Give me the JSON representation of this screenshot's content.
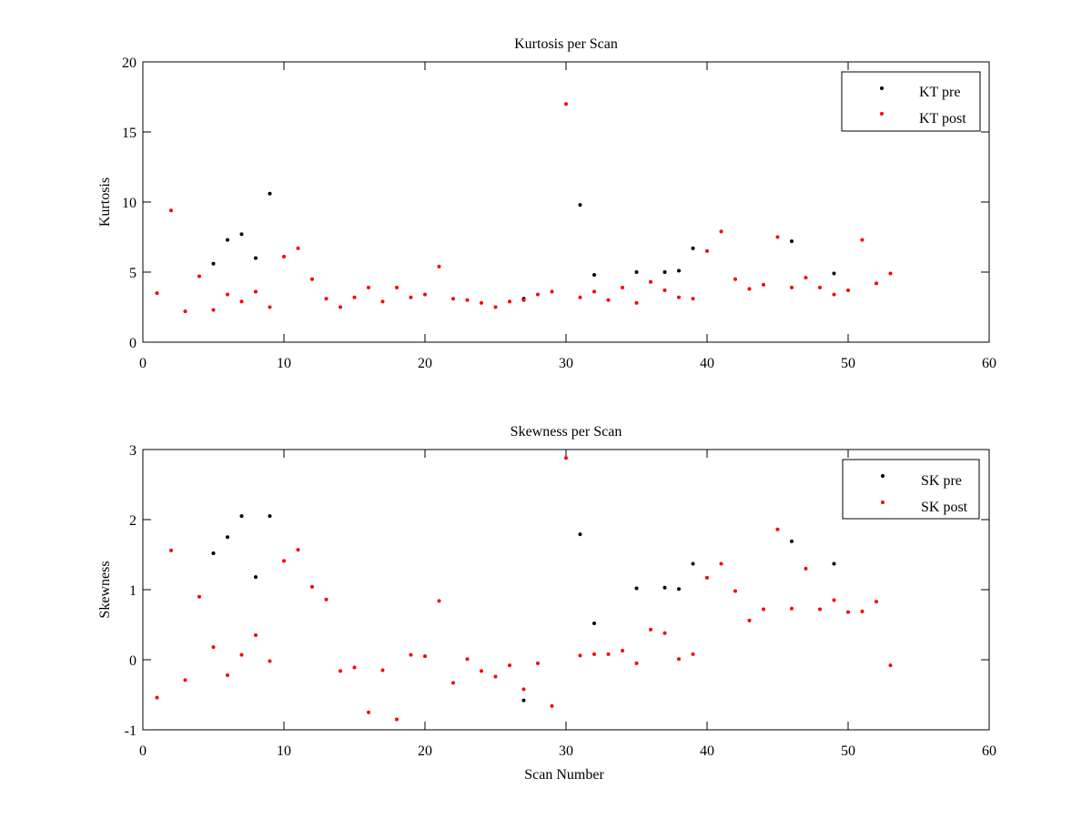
{
  "chart_data": [
    {
      "type": "scatter",
      "title": "Kurtosis per Scan",
      "xlabel": "",
      "ylabel": "Kurtosis",
      "xlim": [
        0,
        60
      ],
      "ylim": [
        0,
        20
      ],
      "xticks": [
        "0",
        "10",
        "20",
        "30",
        "40",
        "50",
        "60"
      ],
      "yticks": [
        "0",
        "5",
        "10",
        "15",
        "20"
      ],
      "grid": false,
      "legend_position": "top-right",
      "series": [
        {
          "name": "KT pre",
          "color": "#000000",
          "points": [
            [
              5,
              5.6
            ],
            [
              6,
              7.3
            ],
            [
              7,
              7.7
            ],
            [
              8,
              6.0
            ],
            [
              9,
              10.6
            ],
            [
              27,
              3.1
            ],
            [
              31,
              9.8
            ],
            [
              32,
              4.8
            ],
            [
              35,
              5.0
            ],
            [
              37,
              5.0
            ],
            [
              38,
              5.1
            ],
            [
              39,
              6.7
            ],
            [
              46,
              7.2
            ],
            [
              49,
              4.9
            ]
          ]
        },
        {
          "name": "KT post",
          "color": "#ff0000",
          "points": [
            [
              1,
              3.5
            ],
            [
              2,
              9.4
            ],
            [
              3,
              2.2
            ],
            [
              4,
              4.7
            ],
            [
              5,
              2.3
            ],
            [
              6,
              3.4
            ],
            [
              7,
              2.9
            ],
            [
              8,
              3.6
            ],
            [
              9,
              2.5
            ],
            [
              10,
              6.1
            ],
            [
              11,
              6.7
            ],
            [
              12,
              4.5
            ],
            [
              13,
              3.1
            ],
            [
              14,
              2.5
            ],
            [
              15,
              3.2
            ],
            [
              16,
              3.9
            ],
            [
              17,
              2.9
            ],
            [
              18,
              3.9
            ],
            [
              19,
              3.2
            ],
            [
              20,
              3.4
            ],
            [
              21,
              5.4
            ],
            [
              22,
              3.1
            ],
            [
              23,
              3.0
            ],
            [
              24,
              2.8
            ],
            [
              25,
              2.5
            ],
            [
              26,
              2.9
            ],
            [
              27,
              3.0
            ],
            [
              28,
              3.4
            ],
            [
              29,
              3.6
            ],
            [
              30,
              17.0
            ],
            [
              31,
              3.2
            ],
            [
              32,
              3.6
            ],
            [
              33,
              3.0
            ],
            [
              34,
              3.9
            ],
            [
              35,
              2.8
            ],
            [
              36,
              4.3
            ],
            [
              37,
              3.7
            ],
            [
              38,
              3.2
            ],
            [
              39,
              3.1
            ],
            [
              40,
              6.5
            ],
            [
              41,
              7.9
            ],
            [
              42,
              4.5
            ],
            [
              43,
              3.8
            ],
            [
              44,
              4.1
            ],
            [
              45,
              7.5
            ],
            [
              46,
              3.9
            ],
            [
              47,
              4.6
            ],
            [
              48,
              3.9
            ],
            [
              49,
              3.4
            ],
            [
              50,
              3.7
            ],
            [
              51,
              7.3
            ],
            [
              52,
              4.2
            ],
            [
              53,
              4.9
            ]
          ]
        }
      ]
    },
    {
      "type": "scatter",
      "title": "Skewness per Scan",
      "xlabel": "Scan Number",
      "ylabel": "Skewness",
      "xlim": [
        0,
        60
      ],
      "ylim": [
        -1,
        3
      ],
      "xticks": [
        "0",
        "10",
        "20",
        "30",
        "40",
        "50",
        "60"
      ],
      "yticks": [
        "-1",
        "0",
        "1",
        "2",
        "3"
      ],
      "grid": false,
      "legend_position": "top-right",
      "series": [
        {
          "name": "SK pre",
          "color": "#000000",
          "points": [
            [
              5,
              1.52
            ],
            [
              6,
              1.75
            ],
            [
              7,
              2.05
            ],
            [
              8,
              1.18
            ],
            [
              9,
              2.05
            ],
            [
              27,
              -0.58
            ],
            [
              31,
              1.79
            ],
            [
              32,
              0.52
            ],
            [
              35,
              1.02
            ],
            [
              37,
              1.03
            ],
            [
              38,
              1.01
            ],
            [
              39,
              1.37
            ],
            [
              46,
              1.69
            ],
            [
              49,
              1.37
            ]
          ]
        },
        {
          "name": "SK post",
          "color": "#ff0000",
          "points": [
            [
              1,
              -0.54
            ],
            [
              2,
              1.56
            ],
            [
              3,
              -0.29
            ],
            [
              4,
              0.9
            ],
            [
              5,
              0.18
            ],
            [
              6,
              -0.22
            ],
            [
              7,
              0.07
            ],
            [
              8,
              0.35
            ],
            [
              9,
              -0.02
            ],
            [
              10,
              1.41
            ],
            [
              11,
              1.57
            ],
            [
              12,
              1.04
            ],
            [
              13,
              0.86
            ],
            [
              14,
              -0.16
            ],
            [
              15,
              -0.11
            ],
            [
              16,
              -0.75
            ],
            [
              17,
              -0.15
            ],
            [
              18,
              -0.85
            ],
            [
              19,
              0.07
            ],
            [
              20,
              0.05
            ],
            [
              21,
              0.84
            ],
            [
              22,
              -0.33
            ],
            [
              23,
              0.01
            ],
            [
              24,
              -0.16
            ],
            [
              25,
              -0.24
            ],
            [
              26,
              -0.08
            ],
            [
              27,
              -0.42
            ],
            [
              28,
              -0.05
            ],
            [
              29,
              -0.66
            ],
            [
              30,
              2.88
            ],
            [
              31,
              0.06
            ],
            [
              32,
              0.08
            ],
            [
              33,
              0.08
            ],
            [
              34,
              0.13
            ],
            [
              35,
              -0.05
            ],
            [
              36,
              0.43
            ],
            [
              37,
              0.38
            ],
            [
              38,
              0.01
            ],
            [
              39,
              0.08
            ],
            [
              40,
              1.17
            ],
            [
              41,
              1.37
            ],
            [
              42,
              0.98
            ],
            [
              43,
              0.56
            ],
            [
              44,
              0.72
            ],
            [
              45,
              1.86
            ],
            [
              46,
              0.73
            ],
            [
              47,
              1.3
            ],
            [
              48,
              0.72
            ],
            [
              49,
              0.85
            ],
            [
              50,
              0.68
            ],
            [
              51,
              0.69
            ],
            [
              52,
              0.83
            ],
            [
              53,
              -0.08
            ]
          ]
        }
      ]
    }
  ]
}
